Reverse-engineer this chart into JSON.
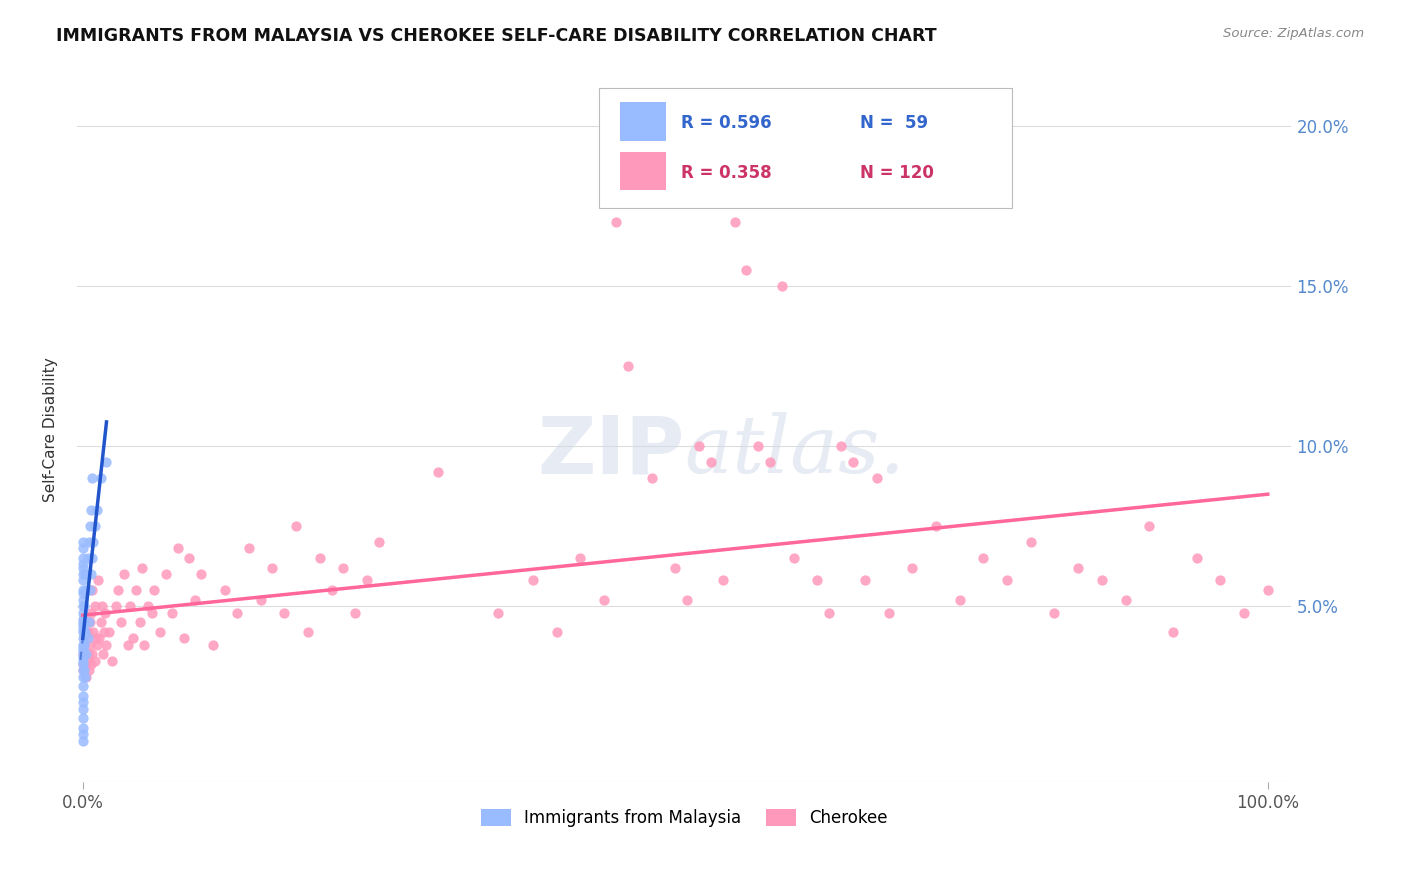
{
  "title": "IMMIGRANTS FROM MALAYSIA VS CHEROKEE SELF-CARE DISABILITY CORRELATION CHART",
  "source": "Source: ZipAtlas.com",
  "ylabel": "Self-Care Disability",
  "ytick_values": [
    0.05,
    0.1,
    0.15,
    0.2
  ],
  "ytick_labels": [
    "5.0%",
    "10.0%",
    "15.0%",
    "20.0%"
  ],
  "xlim": [
    -0.005,
    1.02
  ],
  "ylim": [
    -0.005,
    0.215
  ],
  "blue_color": "#99BBFF",
  "pink_color": "#FF99BB",
  "blue_line_color": "#2255CC",
  "pink_line_color": "#FF6699",
  "blue_scatter": [
    [
      0.0,
      0.008
    ],
    [
      0.0,
      0.01
    ],
    [
      0.0,
      0.012
    ],
    [
      0.0,
      0.015
    ],
    [
      0.0,
      0.018
    ],
    [
      0.0,
      0.02
    ],
    [
      0.0,
      0.022
    ],
    [
      0.0,
      0.025
    ],
    [
      0.0,
      0.028
    ],
    [
      0.0,
      0.03
    ],
    [
      0.0,
      0.032
    ],
    [
      0.0,
      0.033
    ],
    [
      0.0,
      0.034
    ],
    [
      0.0,
      0.035
    ],
    [
      0.0,
      0.036
    ],
    [
      0.0,
      0.037
    ],
    [
      0.0,
      0.038
    ],
    [
      0.0,
      0.04
    ],
    [
      0.0,
      0.042
    ],
    [
      0.0,
      0.043
    ],
    [
      0.0,
      0.044
    ],
    [
      0.0,
      0.045
    ],
    [
      0.0,
      0.046
    ],
    [
      0.0,
      0.048
    ],
    [
      0.0,
      0.05
    ],
    [
      0.0,
      0.052
    ],
    [
      0.0,
      0.054
    ],
    [
      0.0,
      0.055
    ],
    [
      0.0,
      0.058
    ],
    [
      0.0,
      0.06
    ],
    [
      0.0,
      0.062
    ],
    [
      0.0,
      0.063
    ],
    [
      0.0,
      0.065
    ],
    [
      0.0,
      0.068
    ],
    [
      0.0,
      0.07
    ],
    [
      0.001,
      0.03
    ],
    [
      0.001,
      0.038
    ],
    [
      0.001,
      0.045
    ],
    [
      0.001,
      0.05
    ],
    [
      0.002,
      0.028
    ],
    [
      0.002,
      0.042
    ],
    [
      0.002,
      0.06
    ],
    [
      0.003,
      0.035
    ],
    [
      0.003,
      0.055
    ],
    [
      0.004,
      0.04
    ],
    [
      0.004,
      0.065
    ],
    [
      0.005,
      0.045
    ],
    [
      0.005,
      0.07
    ],
    [
      0.006,
      0.055
    ],
    [
      0.006,
      0.075
    ],
    [
      0.007,
      0.06
    ],
    [
      0.007,
      0.08
    ],
    [
      0.008,
      0.065
    ],
    [
      0.008,
      0.09
    ],
    [
      0.009,
      0.07
    ],
    [
      0.01,
      0.075
    ],
    [
      0.012,
      0.08
    ],
    [
      0.015,
      0.09
    ],
    [
      0.02,
      0.095
    ]
  ],
  "pink_scatter": [
    [
      0.0,
      0.03
    ],
    [
      0.0,
      0.032
    ],
    [
      0.0,
      0.035
    ],
    [
      0.001,
      0.03
    ],
    [
      0.001,
      0.038
    ],
    [
      0.002,
      0.032
    ],
    [
      0.002,
      0.04
    ],
    [
      0.003,
      0.028
    ],
    [
      0.003,
      0.042
    ],
    [
      0.004,
      0.033
    ],
    [
      0.004,
      0.042
    ],
    [
      0.005,
      0.03
    ],
    [
      0.005,
      0.035
    ],
    [
      0.006,
      0.038
    ],
    [
      0.006,
      0.045
    ],
    [
      0.007,
      0.032
    ],
    [
      0.007,
      0.048
    ],
    [
      0.008,
      0.035
    ],
    [
      0.008,
      0.055
    ],
    [
      0.009,
      0.042
    ],
    [
      0.01,
      0.05
    ],
    [
      0.01,
      0.033
    ],
    [
      0.011,
      0.04
    ],
    [
      0.012,
      0.038
    ],
    [
      0.013,
      0.058
    ],
    [
      0.014,
      0.04
    ],
    [
      0.015,
      0.045
    ],
    [
      0.016,
      0.05
    ],
    [
      0.017,
      0.035
    ],
    [
      0.018,
      0.042
    ],
    [
      0.019,
      0.048
    ],
    [
      0.02,
      0.038
    ],
    [
      0.022,
      0.042
    ],
    [
      0.025,
      0.033
    ],
    [
      0.028,
      0.05
    ],
    [
      0.03,
      0.055
    ],
    [
      0.032,
      0.045
    ],
    [
      0.035,
      0.06
    ],
    [
      0.038,
      0.038
    ],
    [
      0.04,
      0.05
    ],
    [
      0.042,
      0.04
    ],
    [
      0.045,
      0.055
    ],
    [
      0.048,
      0.045
    ],
    [
      0.05,
      0.062
    ],
    [
      0.052,
      0.038
    ],
    [
      0.055,
      0.05
    ],
    [
      0.058,
      0.048
    ],
    [
      0.06,
      0.055
    ],
    [
      0.065,
      0.042
    ],
    [
      0.07,
      0.06
    ],
    [
      0.075,
      0.048
    ],
    [
      0.08,
      0.068
    ],
    [
      0.085,
      0.04
    ],
    [
      0.09,
      0.065
    ],
    [
      0.095,
      0.052
    ],
    [
      0.1,
      0.06
    ],
    [
      0.11,
      0.038
    ],
    [
      0.12,
      0.055
    ],
    [
      0.13,
      0.048
    ],
    [
      0.14,
      0.068
    ],
    [
      0.15,
      0.052
    ],
    [
      0.16,
      0.062
    ],
    [
      0.17,
      0.048
    ],
    [
      0.18,
      0.075
    ],
    [
      0.19,
      0.042
    ],
    [
      0.2,
      0.065
    ],
    [
      0.21,
      0.055
    ],
    [
      0.22,
      0.062
    ],
    [
      0.23,
      0.048
    ],
    [
      0.24,
      0.058
    ],
    [
      0.25,
      0.07
    ],
    [
      0.3,
      0.092
    ],
    [
      0.35,
      0.048
    ],
    [
      0.38,
      0.058
    ],
    [
      0.4,
      0.042
    ],
    [
      0.42,
      0.065
    ],
    [
      0.44,
      0.052
    ],
    [
      0.45,
      0.17
    ],
    [
      0.46,
      0.125
    ],
    [
      0.48,
      0.09
    ],
    [
      0.5,
      0.062
    ],
    [
      0.51,
      0.052
    ],
    [
      0.52,
      0.1
    ],
    [
      0.53,
      0.095
    ],
    [
      0.54,
      0.058
    ],
    [
      0.55,
      0.17
    ],
    [
      0.56,
      0.155
    ],
    [
      0.57,
      0.1
    ],
    [
      0.58,
      0.095
    ],
    [
      0.59,
      0.15
    ],
    [
      0.6,
      0.065
    ],
    [
      0.62,
      0.058
    ],
    [
      0.63,
      0.048
    ],
    [
      0.64,
      0.1
    ],
    [
      0.65,
      0.095
    ],
    [
      0.66,
      0.058
    ],
    [
      0.67,
      0.09
    ],
    [
      0.68,
      0.048
    ],
    [
      0.7,
      0.062
    ],
    [
      0.72,
      0.075
    ],
    [
      0.74,
      0.052
    ],
    [
      0.76,
      0.065
    ],
    [
      0.78,
      0.058
    ],
    [
      0.8,
      0.07
    ],
    [
      0.82,
      0.048
    ],
    [
      0.84,
      0.062
    ],
    [
      0.86,
      0.058
    ],
    [
      0.88,
      0.052
    ],
    [
      0.9,
      0.075
    ],
    [
      0.92,
      0.042
    ],
    [
      0.94,
      0.065
    ],
    [
      0.96,
      0.058
    ],
    [
      0.98,
      0.048
    ],
    [
      1.0,
      0.055
    ]
  ]
}
